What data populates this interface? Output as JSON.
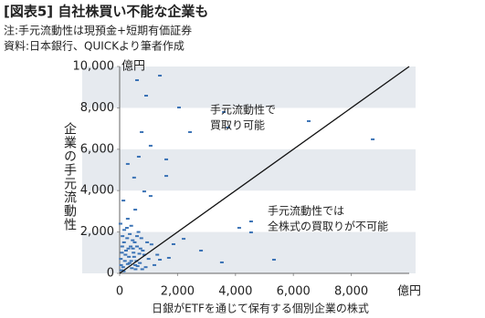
{
  "chart_data": {
    "type": "scatter",
    "title": "[図表5] 自社株買い不能な企業も",
    "notes": [
      "注:手元流動性は現預金+短期有価証券",
      "資料:日本銀行、QUICKより筆者作成"
    ],
    "x_label": "日銀がETFを通じて保有する個別企業の株式",
    "y_label": "企業の手元流動性",
    "x_unit": "億円",
    "y_unit": "億円",
    "annotations": [
      [
        "手元流動性で",
        "買取り可能"
      ],
      [
        "手元流動性では",
        "全株式の買取りが不可能"
      ]
    ],
    "color": "#3a72b5",
    "xlim": [
      0,
      10000
    ],
    "ylim": [
      0,
      10000
    ],
    "xticks": [
      0,
      {
        "value": 2000,
        "label": "2,000"
      },
      {
        "value": 4000,
        "label": "4,000"
      },
      {
        "value": 6000,
        "label": "6,000"
      },
      {
        "value": 8000,
        "label": "8,000"
      }
    ],
    "yticks": [
      0,
      {
        "value": 2000,
        "label": "2,000"
      },
      {
        "value": 4000,
        "label": "4,000"
      },
      {
        "value": 6000,
        "label": "6,000"
      },
      {
        "value": 8000,
        "label": "8,000"
      },
      {
        "value": 10000,
        "label": "10,000"
      }
    ],
    "x": [
      600,
      1390,
      915,
      2050,
      3600,
      3750,
      6530,
      8740,
      2430,
      760,
      1070,
      660,
      1610,
      280,
      500,
      1610,
      850,
      130,
      540,
      1070,
      280,
      4540,
      4130,
      4540,
      2210,
      1860,
      2810,
      3530,
      5330,
      1700,
      1390,
      100,
      150,
      200,
      300,
      400,
      250,
      50,
      80,
      120,
      350,
      500,
      600,
      700,
      800,
      900,
      1000,
      1100,
      1200,
      1300,
      450,
      550,
      650,
      750,
      850,
      950,
      30,
      60,
      180,
      220,
      280,
      320,
      380,
      420,
      480,
      520,
      580,
      620,
      680,
      720,
      780,
      160,
      40,
      90,
      140,
      260,
      340,
      400,
      460,
      540,
      600
    ],
    "y": [
      9340,
      9560,
      8590,
      8020,
      7800,
      7050,
      7360,
      6480,
      6830,
      6830,
      6170,
      5640,
      5510,
      5290,
      4630,
      4710,
      3960,
      3520,
      3080,
      3740,
      2640,
      2510,
      2200,
      1980,
      1670,
      1410,
      1100,
      530,
      660,
      750,
      660,
      1800,
      1500,
      900,
      1200,
      600,
      2200,
      400,
      1000,
      300,
      1900,
      800,
      1300,
      500,
      1100,
      300,
      700,
      1400,
      400,
      900,
      1600,
      200,
      2000,
      1700,
      900,
      1500,
      2400,
      150,
      600,
      1100,
      450,
      800,
      1300,
      250,
      1000,
      1500,
      600,
      350,
      950,
      1200,
      200,
      2100,
      700,
      1300,
      100,
      1700,
      500,
      2300,
      1200,
      400,
      1800
    ]
  }
}
